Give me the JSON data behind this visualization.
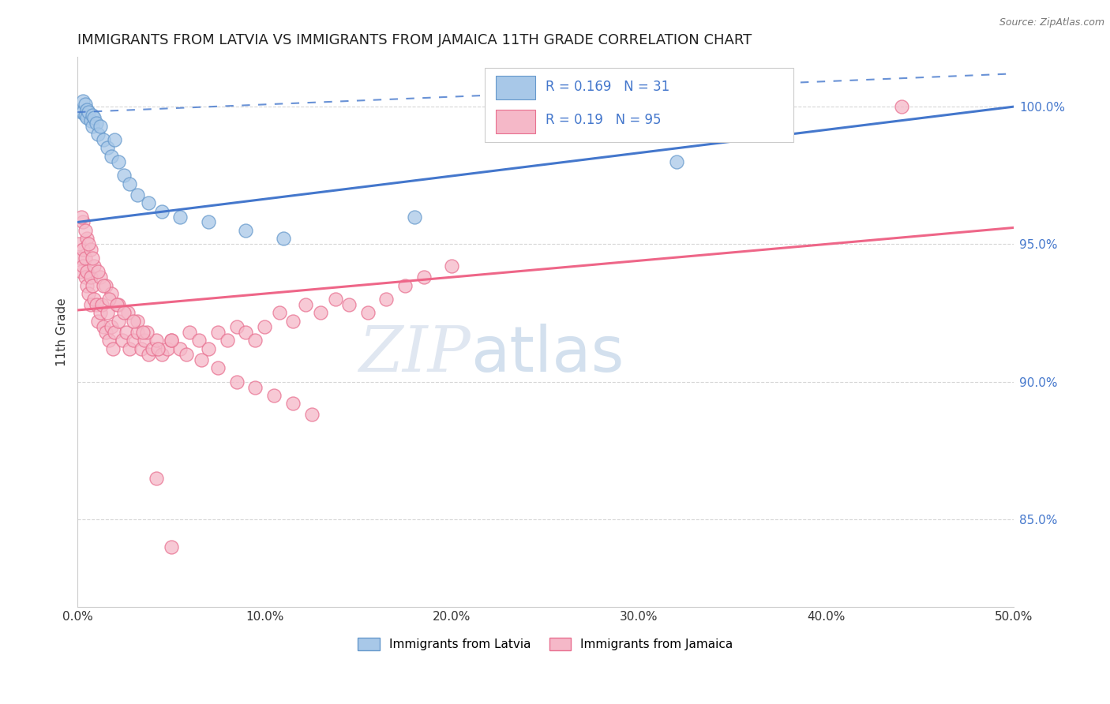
{
  "title": "IMMIGRANTS FROM LATVIA VS IMMIGRANTS FROM JAMAICA 11TH GRADE CORRELATION CHART",
  "source": "Source: ZipAtlas.com",
  "ylabel": "11th Grade",
  "legend_latvia": "Immigrants from Latvia",
  "legend_jamaica": "Immigrants from Jamaica",
  "R_latvia": 0.169,
  "N_latvia": 31,
  "R_jamaica": 0.19,
  "N_jamaica": 95,
  "xmin": 0.0,
  "xmax": 0.5,
  "ymin": 0.818,
  "ymax": 1.018,
  "yticks": [
    0.85,
    0.9,
    0.95,
    1.0
  ],
  "ytick_labels": [
    "85.0%",
    "90.0%",
    "95.0%",
    "100.0%"
  ],
  "xticks": [
    0.0,
    0.1,
    0.2,
    0.3,
    0.4,
    0.5
  ],
  "xtick_labels": [
    "0.0%",
    "10.0%",
    "20.0%",
    "30.0%",
    "40.0%",
    "50.0%"
  ],
  "color_latvia_fill": "#a8c8e8",
  "color_latvia_edge": "#6699cc",
  "color_jamaica_fill": "#f5b8c8",
  "color_jamaica_edge": "#e87090",
  "color_latvia_line": "#4477cc",
  "color_jamaica_line": "#ee6688",
  "latvia_x": [
    0.002,
    0.003,
    0.003,
    0.004,
    0.004,
    0.005,
    0.005,
    0.006,
    0.007,
    0.008,
    0.008,
    0.009,
    0.01,
    0.011,
    0.012,
    0.014,
    0.016,
    0.018,
    0.02,
    0.022,
    0.025,
    0.028,
    0.032,
    0.038,
    0.045,
    0.055,
    0.07,
    0.09,
    0.11,
    0.18,
    0.32
  ],
  "latvia_y": [
    0.998,
    1.002,
    0.998,
    1.001,
    0.997,
    0.999,
    0.996,
    0.998,
    0.995,
    0.997,
    0.993,
    0.996,
    0.994,
    0.99,
    0.993,
    0.988,
    0.985,
    0.982,
    0.988,
    0.98,
    0.975,
    0.972,
    0.968,
    0.965,
    0.962,
    0.96,
    0.958,
    0.955,
    0.952,
    0.96,
    0.98
  ],
  "jamaica_x": [
    0.001,
    0.002,
    0.002,
    0.003,
    0.003,
    0.004,
    0.004,
    0.005,
    0.005,
    0.006,
    0.007,
    0.007,
    0.008,
    0.009,
    0.01,
    0.011,
    0.012,
    0.013,
    0.014,
    0.015,
    0.016,
    0.017,
    0.018,
    0.019,
    0.02,
    0.022,
    0.024,
    0.026,
    0.028,
    0.03,
    0.032,
    0.034,
    0.036,
    0.038,
    0.04,
    0.042,
    0.045,
    0.048,
    0.05,
    0.055,
    0.06,
    0.065,
    0.07,
    0.075,
    0.08,
    0.085,
    0.09,
    0.095,
    0.1,
    0.108,
    0.115,
    0.122,
    0.13,
    0.138,
    0.145,
    0.155,
    0.165,
    0.175,
    0.185,
    0.2,
    0.003,
    0.005,
    0.007,
    0.009,
    0.012,
    0.015,
    0.018,
    0.022,
    0.027,
    0.032,
    0.037,
    0.043,
    0.05,
    0.058,
    0.066,
    0.075,
    0.085,
    0.095,
    0.105,
    0.115,
    0.125,
    0.002,
    0.004,
    0.006,
    0.008,
    0.011,
    0.014,
    0.017,
    0.021,
    0.025,
    0.03,
    0.035,
    0.042,
    0.05,
    0.44
  ],
  "jamaica_y": [
    0.95,
    0.945,
    0.94,
    0.948,
    0.942,
    0.938,
    0.945,
    0.935,
    0.94,
    0.932,
    0.938,
    0.928,
    0.935,
    0.93,
    0.928,
    0.922,
    0.925,
    0.928,
    0.92,
    0.918,
    0.925,
    0.915,
    0.92,
    0.912,
    0.918,
    0.922,
    0.915,
    0.918,
    0.912,
    0.915,
    0.918,
    0.912,
    0.915,
    0.91,
    0.912,
    0.915,
    0.91,
    0.912,
    0.915,
    0.912,
    0.918,
    0.915,
    0.912,
    0.918,
    0.915,
    0.92,
    0.918,
    0.915,
    0.92,
    0.925,
    0.922,
    0.928,
    0.925,
    0.93,
    0.928,
    0.925,
    0.93,
    0.935,
    0.938,
    0.942,
    0.958,
    0.952,
    0.948,
    0.942,
    0.938,
    0.935,
    0.932,
    0.928,
    0.925,
    0.922,
    0.918,
    0.912,
    0.915,
    0.91,
    0.908,
    0.905,
    0.9,
    0.898,
    0.895,
    0.892,
    0.888,
    0.96,
    0.955,
    0.95,
    0.945,
    0.94,
    0.935,
    0.93,
    0.928,
    0.925,
    0.922,
    0.918,
    0.865,
    0.84,
    1.0
  ],
  "lat_line_x0": 0.0,
  "lat_line_y0": 0.958,
  "lat_line_x1": 0.5,
  "lat_line_y1": 1.0,
  "jam_line_x0": 0.0,
  "jam_line_y0": 0.926,
  "jam_line_x1": 0.5,
  "jam_line_y1": 0.956,
  "dashed_line_x0": 0.0,
  "dashed_line_y0": 0.998,
  "dashed_line_x1": 0.5,
  "dashed_line_y1": 1.012
}
